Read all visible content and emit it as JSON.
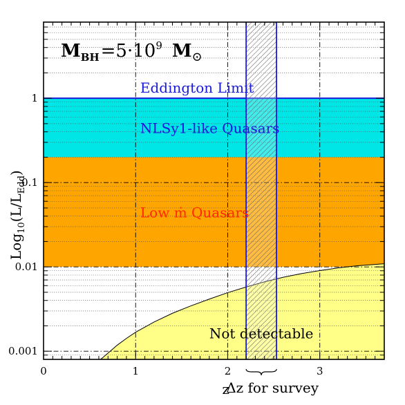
{
  "chart_data": {
    "type": "area",
    "title": "",
    "annotation_mass": {
      "main": "M",
      "main_sub": "BH",
      "eq": "=5·10",
      "eq_sup": "9",
      "unit": "M",
      "unit_symbol": "⊙"
    },
    "xlabel": "z",
    "ylabel": {
      "main": "Log",
      "sub1": "10",
      "mid": "(L/L",
      "sub2": "Edd",
      "end": ")"
    },
    "xlim": [
      0,
      3.7
    ],
    "ylim": [
      0.0008,
      8
    ],
    "yscale": "log",
    "x_ticks": [
      {
        "value": 0,
        "label": "0"
      },
      {
        "value": 1,
        "label": "1"
      },
      {
        "value": 2,
        "label": "2"
      },
      {
        "value": 3,
        "label": "3"
      }
    ],
    "y_ticks": [
      {
        "value": 1,
        "label": "1"
      },
      {
        "value": 0.1,
        "label": "0.1"
      },
      {
        "value": 0.01,
        "label": "0.01"
      },
      {
        "value": 0.001,
        "label": "0.001"
      }
    ],
    "regions": [
      {
        "name": "NLSy1-like Quasars",
        "y_from": 0.2,
        "y_to": 1.0,
        "color": "#00e5e5",
        "label_color": "#1a1ad8"
      },
      {
        "name": "Low ṁ Quasars",
        "y_from": 0.01,
        "y_to": 0.2,
        "color": "#ffa500",
        "label_color": "#ff2a00"
      },
      {
        "name": "Not detectable",
        "color": "#ffff88",
        "label_color": "#000000"
      }
    ],
    "eddington_limit": {
      "label": "Eddington Limit",
      "y": 1.0,
      "color": "#1a1ad8"
    },
    "detection_curve": [
      {
        "x": 0.62,
        "y": 0.0008
      },
      {
        "x": 0.7,
        "y": 0.00095
      },
      {
        "x": 0.8,
        "y": 0.00118
      },
      {
        "x": 0.9,
        "y": 0.00142
      },
      {
        "x": 1.0,
        "y": 0.00168
      },
      {
        "x": 1.2,
        "y": 0.00222
      },
      {
        "x": 1.4,
        "y": 0.00282
      },
      {
        "x": 1.6,
        "y": 0.00345
      },
      {
        "x": 1.8,
        "y": 0.00415
      },
      {
        "x": 2.0,
        "y": 0.00495
      },
      {
        "x": 2.2,
        "y": 0.00578
      },
      {
        "x": 2.4,
        "y": 0.00665
      },
      {
        "x": 2.6,
        "y": 0.00752
      },
      {
        "x": 2.8,
        "y": 0.00832
      },
      {
        "x": 3.0,
        "y": 0.00905
      },
      {
        "x": 3.2,
        "y": 0.00972
      },
      {
        "x": 3.4,
        "y": 0.0103
      },
      {
        "x": 3.7,
        "y": 0.0109
      }
    ],
    "survey_window": {
      "z_from": 2.2,
      "z_to": 2.53,
      "color": "#1a1ad8",
      "label": "Δz for survey"
    },
    "vertical_ref_lines_z": [
      1,
      2,
      3
    ],
    "horizontal_ref_lines_y": [
      0.1,
      0.01,
      0.001
    ]
  }
}
